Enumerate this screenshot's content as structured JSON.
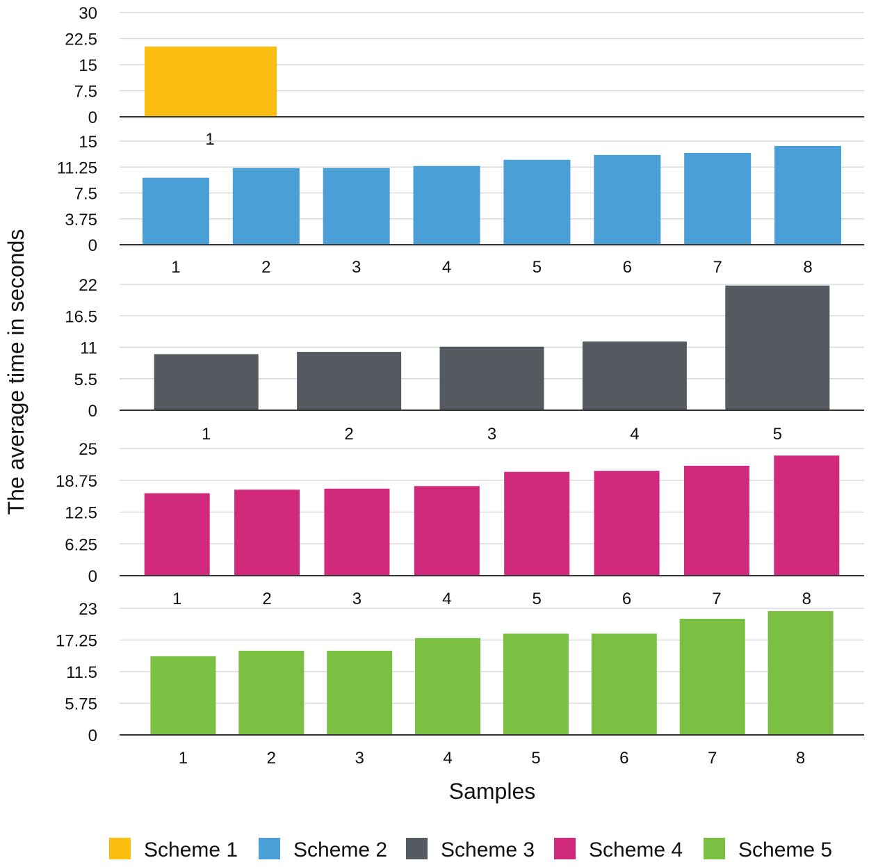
{
  "chart_data": [
    {
      "type": "bar",
      "series_name": "Scheme 1",
      "color": "#FDBE12",
      "categories": [
        "1"
      ],
      "values": [
        20.2
      ],
      "yticks": [
        "0",
        "7.5",
        "15",
        "22.5",
        "30"
      ],
      "ylim": [
        0,
        30
      ]
    },
    {
      "type": "bar",
      "series_name": "Scheme 2",
      "color": "#4A9FD7",
      "categories": [
        "1",
        "2",
        "3",
        "4",
        "5",
        "6",
        "7",
        "8"
      ],
      "values": [
        9.7,
        11.1,
        11.1,
        11.4,
        12.3,
        13.0,
        13.3,
        14.3
      ],
      "yticks": [
        "0",
        "3.75",
        "7.5",
        "11.25",
        "15"
      ],
      "ylim": [
        0,
        15
      ]
    },
    {
      "type": "bar",
      "series_name": "Scheme 3",
      "color": "#555A61",
      "categories": [
        "1",
        "2",
        "3",
        "4",
        "5"
      ],
      "values": [
        9.8,
        10.2,
        11.1,
        12.0,
        21.8
      ],
      "yticks": [
        "0",
        "5.5",
        "11",
        "16.5",
        "22"
      ],
      "ylim": [
        0,
        22
      ]
    },
    {
      "type": "bar",
      "series_name": "Scheme 4",
      "color": "#D12A7C",
      "categories": [
        "1",
        "2",
        "3",
        "4",
        "5",
        "6",
        "7",
        "8"
      ],
      "values": [
        16.2,
        16.9,
        17.1,
        17.6,
        20.4,
        20.6,
        21.6,
        23.6
      ],
      "yticks": [
        "0",
        "6.25",
        "12.5",
        "18.75",
        "25"
      ],
      "ylim": [
        0,
        25
      ]
    },
    {
      "type": "bar",
      "series_name": "Scheme 5",
      "color": "#7BC043",
      "categories": [
        "1",
        "2",
        "3",
        "4",
        "5",
        "6",
        "7",
        "8"
      ],
      "values": [
        14.3,
        15.3,
        15.3,
        17.6,
        18.4,
        18.4,
        21.1,
        22.5
      ],
      "yticks": [
        "0",
        "5.75",
        "11.5",
        "17.25",
        "23"
      ],
      "ylim": [
        0,
        23
      ]
    }
  ],
  "ylabel": "The average time in seconds",
  "xlabel": "Samples",
  "legend": [
    {
      "label": "Scheme 1",
      "color": "#FDBE12"
    },
    {
      "label": "Scheme 2",
      "color": "#4A9FD7"
    },
    {
      "label": "Scheme 3",
      "color": "#555A61"
    },
    {
      "label": "Scheme 4",
      "color": "#D12A7C"
    },
    {
      "label": "Scheme 5",
      "color": "#7BC043"
    }
  ]
}
